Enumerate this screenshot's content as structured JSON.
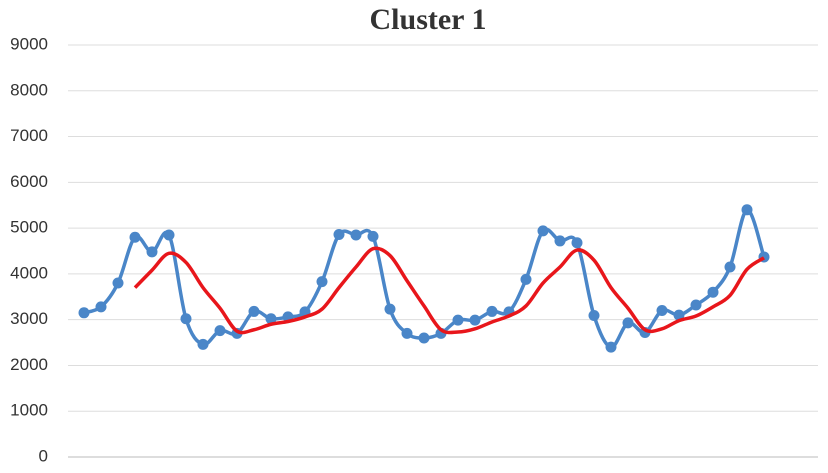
{
  "chart_data": {
    "type": "line",
    "title": "Cluster 1",
    "categories": [
      null,
      null,
      null,
      null,
      null,
      null,
      null,
      null,
      null,
      null,
      null,
      null,
      null,
      null,
      null,
      null,
      null,
      null,
      null,
      null,
      null,
      null,
      null,
      null,
      null,
      null,
      null,
      null,
      null,
      null,
      null,
      null,
      null,
      null,
      null,
      null,
      null,
      null,
      null,
      null,
      null
    ],
    "series": [
      {
        "color": "#4a86c8",
        "markers": true,
        "values": [
          3150,
          3280,
          3800,
          4800,
          4480,
          4850,
          3020,
          2460,
          2760,
          2700,
          3180,
          3020,
          3060,
          3170,
          3830,
          4860,
          4850,
          4820,
          3230,
          2700,
          2600,
          2700,
          2990,
          2990,
          3180,
          3170,
          3880,
          4940,
          4720,
          4680,
          3090,
          2400,
          2930,
          2720,
          3200,
          3100,
          3320,
          3600,
          4150,
          5400,
          4370
        ]
      },
      {
        "color": "#e8161b",
        "markers": false,
        "values": [
          null,
          null,
          null,
          3700,
          4080,
          4450,
          4250,
          3700,
          3250,
          2750,
          2780,
          2900,
          2960,
          3060,
          3230,
          3700,
          4150,
          4550,
          4400,
          3850,
          3300,
          2780,
          2730,
          2800,
          2950,
          3080,
          3300,
          3800,
          4150,
          4520,
          4300,
          3700,
          3250,
          2780,
          2800,
          2980,
          3080,
          3280,
          3530,
          4100,
          4350
        ]
      }
    ],
    "ylim": [
      0,
      9000
    ],
    "yticks": [
      0,
      1000,
      2000,
      3000,
      4000,
      5000,
      6000,
      7000,
      8000,
      9000
    ],
    "grid": true
  }
}
